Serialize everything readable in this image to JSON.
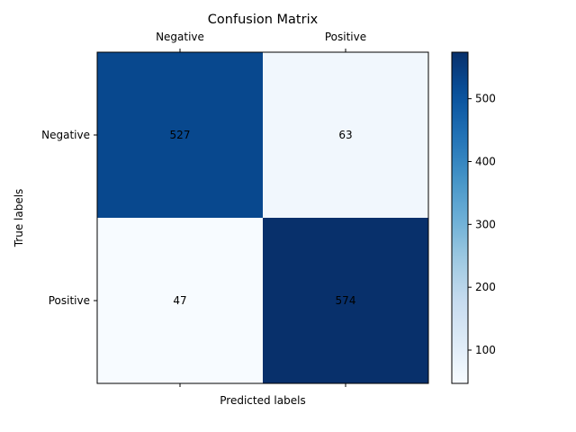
{
  "chart_data": {
    "type": "heatmap",
    "title": "Confusion Matrix",
    "xlabel": "Predicted labels",
    "ylabel": "True labels",
    "x_categories": [
      "Negative",
      "Positive"
    ],
    "y_categories": [
      "Negative",
      "Positive"
    ],
    "values": [
      [
        527,
        63
      ],
      [
        47,
        574
      ]
    ],
    "colormap": "Blues",
    "color_range": [
      47,
      574
    ],
    "colorbar_ticks": [
      100,
      200,
      300,
      400,
      500
    ],
    "x_tick_position": "top",
    "grid": false
  }
}
